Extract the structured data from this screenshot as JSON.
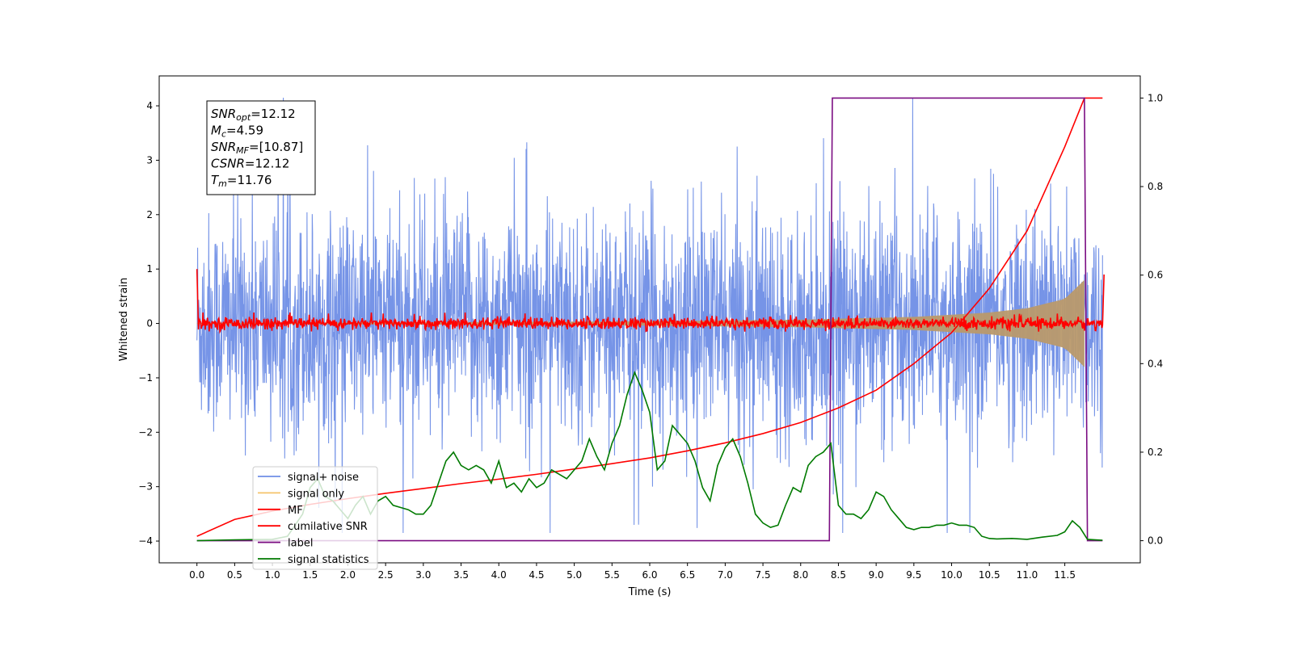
{
  "chart_data": {
    "type": "line",
    "xlabel": "Time (s)",
    "ylabel": "Whitened strain",
    "xlim": [
      -0.5,
      12.5
    ],
    "ylim": [
      -4.4,
      4.55
    ],
    "y2lim": [
      -0.05,
      1.05
    ],
    "x_ticks": [
      "0.0",
      "0.5",
      "1.0",
      "1.5",
      "2.0",
      "2.5",
      "3.0",
      "3.5",
      "4.0",
      "4.5",
      "5.0",
      "5.5",
      "6.0",
      "6.5",
      "7.0",
      "7.5",
      "8.0",
      "8.5",
      "9.0",
      "9.5",
      "10.0",
      "10.5",
      "11.0",
      "11.5"
    ],
    "y_ticks": [
      "4",
      "3",
      "2",
      "1",
      "0",
      "−1",
      "−2",
      "−3",
      "−4"
    ],
    "y2_ticks": [
      "1.0",
      "0.8",
      "0.6",
      "0.4",
      "0.2",
      "0.0"
    ],
    "grid": false,
    "legend_position": "lower-left",
    "annotations": [
      {
        "base": "SNR",
        "sub": "opt",
        "value": "=12.12"
      },
      {
        "base": "M",
        "sub": "c",
        "value": "=4.59"
      },
      {
        "base": "SNR",
        "sub": "MF",
        "value": "=[10.87]"
      },
      {
        "base": "CSNR",
        "sub": "",
        "value": "=12.12"
      },
      {
        "base": "T",
        "sub": "m",
        "value": "=11.76"
      }
    ],
    "series": [
      {
        "name": "signal+ noise",
        "color": "#6f8ee6",
        "axis": "left",
        "x": [
          0.0,
          12.0
        ],
        "envelope_upper": [
          2.0,
          2.0
        ],
        "envelope_lower": [
          -2.0,
          -2.0
        ],
        "peak_max": 4.15,
        "peak_min": -3.85
      },
      {
        "name": "signal only",
        "color": "#f5c36a",
        "axis": "left",
        "x": [
          0.0,
          3.0,
          6.0,
          8.0,
          9.5,
          10.5,
          11.0,
          11.5,
          11.76
        ],
        "amplitude": [
          0.01,
          0.02,
          0.04,
          0.07,
          0.12,
          0.2,
          0.28,
          0.45,
          0.8
        ]
      },
      {
        "name": "MF",
        "color": "#ff0000",
        "axis": "left",
        "x": [
          0.0,
          0.02,
          12.0,
          12.02
        ],
        "y": [
          1.0,
          0.0,
          0.0,
          0.9
        ],
        "noise_band": [
          -0.15,
          0.15
        ]
      },
      {
        "name": "cumilative SNR",
        "color": "#ff0000",
        "axis": "right",
        "x": [
          0.0,
          0.5,
          1.0,
          1.5,
          2.0,
          2.5,
          3.0,
          3.5,
          4.0,
          4.5,
          5.0,
          5.5,
          6.0,
          6.5,
          7.0,
          7.5,
          8.0,
          8.5,
          9.0,
          9.5,
          10.0,
          10.5,
          11.0,
          11.5,
          11.76,
          12.0
        ],
        "y": [
          0.01,
          0.048,
          0.067,
          0.082,
          0.095,
          0.107,
          0.118,
          0.129,
          0.139,
          0.15,
          0.162,
          0.174,
          0.187,
          0.203,
          0.221,
          0.242,
          0.267,
          0.3,
          0.34,
          0.4,
          0.47,
          0.57,
          0.7,
          0.89,
          1.0,
          1.0
        ]
      },
      {
        "name": "label",
        "color": "#7b0d82",
        "axis": "right",
        "x": [
          0.0,
          8.38,
          8.42,
          11.76,
          11.8,
          12.0
        ],
        "y": [
          0.0,
          0.0,
          1.0,
          1.0,
          0.0,
          0.0
        ]
      },
      {
        "name": "signal statistics",
        "color": "#007a00",
        "axis": "right",
        "x": [
          0.0,
          0.5,
          1.0,
          1.2,
          1.4,
          1.5,
          1.6,
          1.7,
          1.8,
          1.9,
          2.0,
          2.1,
          2.2,
          2.3,
          2.4,
          2.5,
          2.6,
          2.7,
          2.8,
          2.9,
          3.0,
          3.1,
          3.2,
          3.3,
          3.4,
          3.5,
          3.6,
          3.7,
          3.8,
          3.9,
          4.0,
          4.1,
          4.2,
          4.3,
          4.4,
          4.5,
          4.6,
          4.7,
          4.8,
          4.9,
          5.0,
          5.1,
          5.2,
          5.3,
          5.4,
          5.5,
          5.6,
          5.7,
          5.8,
          5.9,
          6.0,
          6.1,
          6.2,
          6.3,
          6.4,
          6.5,
          6.6,
          6.7,
          6.8,
          6.9,
          7.0,
          7.1,
          7.2,
          7.3,
          7.4,
          7.5,
          7.6,
          7.7,
          7.8,
          7.9,
          8.0,
          8.1,
          8.2,
          8.3,
          8.4,
          8.5,
          8.6,
          8.7,
          8.8,
          8.9,
          9.0,
          9.1,
          9.2,
          9.3,
          9.4,
          9.5,
          9.6,
          9.7,
          9.8,
          9.9,
          10.0,
          10.1,
          10.2,
          10.3,
          10.4,
          10.5,
          10.6,
          10.8,
          11.0,
          11.2,
          11.4,
          11.5,
          11.6,
          11.7,
          11.8,
          12.0
        ],
        "y": [
          0.0,
          0.002,
          0.003,
          0.01,
          0.06,
          0.12,
          0.14,
          0.1,
          0.09,
          0.07,
          0.05,
          0.08,
          0.1,
          0.06,
          0.09,
          0.1,
          0.08,
          0.075,
          0.07,
          0.06,
          0.06,
          0.08,
          0.13,
          0.18,
          0.2,
          0.17,
          0.16,
          0.17,
          0.16,
          0.13,
          0.18,
          0.12,
          0.13,
          0.11,
          0.14,
          0.12,
          0.13,
          0.16,
          0.15,
          0.14,
          0.16,
          0.18,
          0.23,
          0.19,
          0.16,
          0.22,
          0.26,
          0.33,
          0.38,
          0.34,
          0.29,
          0.16,
          0.18,
          0.26,
          0.24,
          0.22,
          0.18,
          0.12,
          0.09,
          0.17,
          0.21,
          0.23,
          0.19,
          0.13,
          0.06,
          0.04,
          0.03,
          0.035,
          0.08,
          0.12,
          0.11,
          0.17,
          0.19,
          0.2,
          0.22,
          0.08,
          0.06,
          0.06,
          0.05,
          0.07,
          0.11,
          0.1,
          0.07,
          0.05,
          0.03,
          0.025,
          0.03,
          0.03,
          0.035,
          0.035,
          0.04,
          0.035,
          0.035,
          0.03,
          0.01,
          0.005,
          0.004,
          0.005,
          0.003,
          0.008,
          0.012,
          0.02,
          0.045,
          0.03,
          0.003,
          0.001
        ]
      }
    ]
  }
}
